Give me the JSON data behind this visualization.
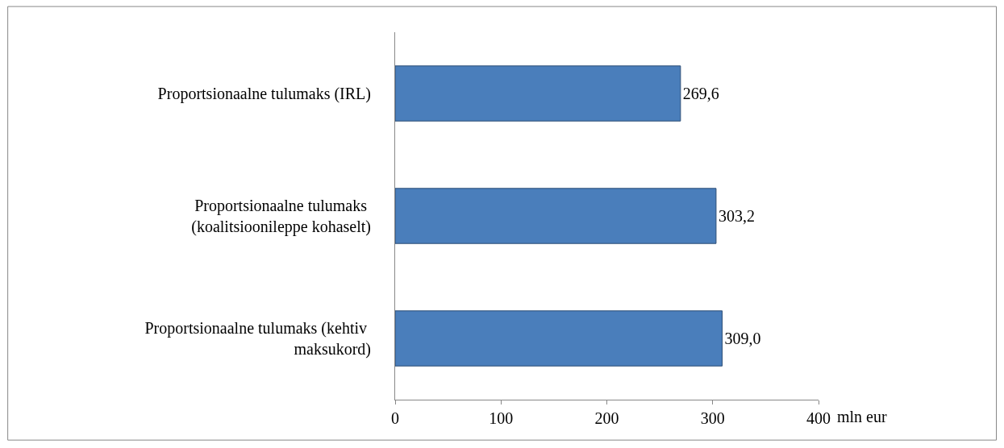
{
  "chart_data": {
    "type": "bar",
    "orientation": "horizontal",
    "xlabel": "mln eur",
    "categories": [
      "Proportsionaalne tulumaks (IRL)",
      "Proportsionaalne tulumaks \n(koalitsioonileppe kohaselt)",
      "Proportsionaalne tulumaks (kehtiv \nmaksukord)"
    ],
    "values": [
      269.6,
      303.2,
      309.0
    ],
    "value_labels": [
      "269,6",
      "303,2",
      "309,0"
    ],
    "color": "#4a7ebb",
    "xlim": [
      0,
      400
    ],
    "xticks": [
      0,
      100,
      200,
      300,
      400
    ]
  }
}
